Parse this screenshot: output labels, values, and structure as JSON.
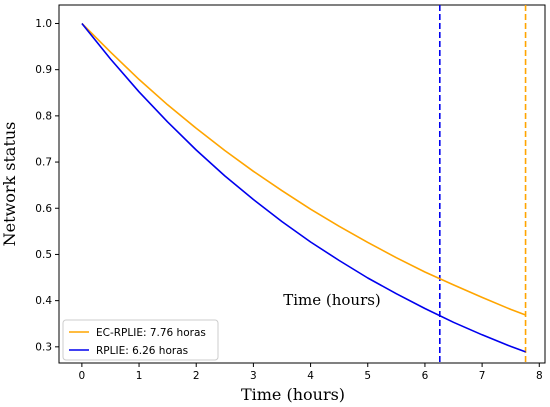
{
  "chart_data": {
    "type": "line",
    "xlabel": "Time (hours)",
    "ylabel": "Network status",
    "overlay_text": "Time (hours)",
    "xlim": [
      -0.4,
      8.1
    ],
    "ylim": [
      0.265,
      1.04
    ],
    "xticks": [
      "0",
      "1",
      "2",
      "3",
      "4",
      "5",
      "6",
      "7",
      "8"
    ],
    "xtick_values": [
      0,
      1,
      2,
      3,
      4,
      5,
      6,
      7,
      8
    ],
    "yticks": [
      "0.3",
      "0.4",
      "0.5",
      "0.6",
      "0.7",
      "0.8",
      "0.9",
      "1.0"
    ],
    "ytick_values": [
      0.3,
      0.4,
      0.5,
      0.6,
      0.7,
      0.8,
      0.9,
      1.0
    ],
    "grid": false,
    "legend_position": "lower-left",
    "series": [
      {
        "name": "EC-RPLIE: 7.76 horas",
        "color": "#FFA500",
        "x": [
          0,
          0.5,
          1,
          1.5,
          2,
          2.5,
          3,
          3.5,
          4,
          4.5,
          5,
          5.5,
          6,
          6.5,
          7,
          7.5,
          7.76
        ],
        "y": [
          1.0,
          0.938,
          0.879,
          0.824,
          0.773,
          0.725,
          0.68,
          0.638,
          0.598,
          0.561,
          0.526,
          0.493,
          0.462,
          0.434,
          0.407,
          0.381,
          0.369
        ],
        "vline_x": 7.76
      },
      {
        "name": "RPLIE: 6.26 horas",
        "color": "#0000EE",
        "x": [
          0,
          0.5,
          1,
          1.5,
          2,
          2.5,
          3,
          3.5,
          4,
          4.5,
          5,
          5.5,
          6,
          6.5,
          7,
          7.5,
          7.76
        ],
        "y": [
          1.0,
          0.923,
          0.852,
          0.787,
          0.726,
          0.67,
          0.619,
          0.571,
          0.527,
          0.487,
          0.449,
          0.415,
          0.383,
          0.353,
          0.326,
          0.301,
          0.289
        ],
        "vline_x": 6.26
      }
    ]
  }
}
